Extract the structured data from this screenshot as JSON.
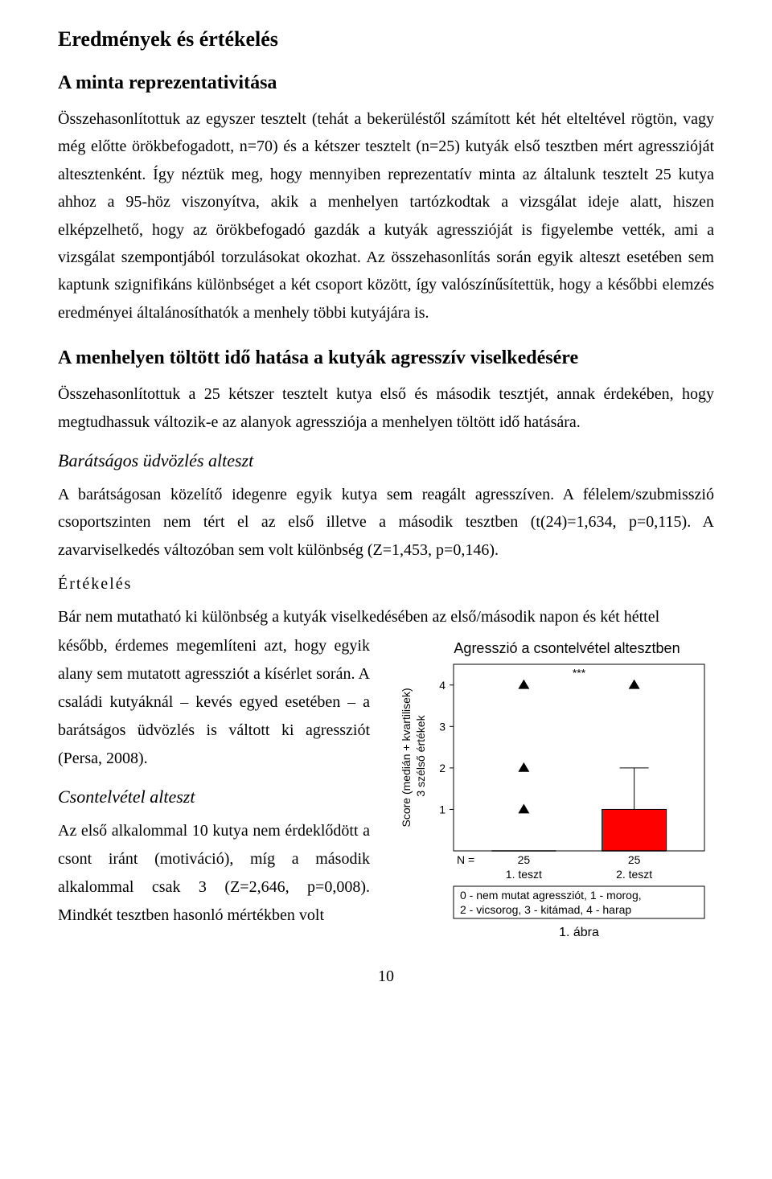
{
  "headings": {
    "h1": "Eredmények és értékelés",
    "h2": "A minta reprezentativitása",
    "h3": "A menhelyen töltött idő hatása a kutyák agresszív viselkedésére",
    "sub_italic_1": "Barátságos üdvözlés alteszt",
    "sub_spaced": "Értékelés",
    "sub_italic_2": "Csontelvétel alteszt"
  },
  "paragraphs": {
    "p1": "Összehasonlítottuk az egyszer tesztelt (tehát a bekerüléstől számított két hét elteltével rögtön, vagy még előtte örökbefogadott, n=70) és a kétszer tesztelt (n=25) kutyák első tesztben mért agresszióját altesztenként. Így néztük meg, hogy mennyiben reprezentatív minta az általunk tesztelt 25 kutya ahhoz a 95-höz viszonyítva, akik a menhelyen tartózkodtak a vizsgálat ideje alatt, hiszen elképzelhető, hogy az örökbefogadó gazdák a kutyák agresszióját is figyelembe vették, ami a vizsgálat szempontjából torzulásokat okozhat. Az összehasonlítás során egyik alteszt esetében sem kaptunk szignifikáns különbséget a két csoport között, így valószínűsítettük, hogy a későbbi elemzés eredményei általánosíthatók a menhely többi kutyájára is.",
    "p2": "Összehasonlítottuk a 25 kétszer tesztelt kutya első és második tesztjét, annak érdekében, hogy megtudhassuk változik-e az alanyok agressziója a menhelyen töltött idő hatására.",
    "p3": "A barátságosan közelítő idegenre egyik kutya sem reagált agresszíven. A félelem/szubmisszió csoportszinten nem tért el az első illetve a második tesztben (t(24)=1,634, p=0,115). A zavarviselkedés változóban sem volt különbség (Z=1,453, p=0,146).",
    "p4": "Bár nem mutatható ki különbség a kutyák viselkedésében az első/második napon és két héttel",
    "left1": "később, érdemes megemlíteni azt, hogy egyik alany sem mutatott agressziót a kísérlet során. A családi kutyáknál – kevés egyed esetében – a barátságos üdvözlés is váltott ki agressziót (Persa, 2008).",
    "left2": "Az első alkalommal 10 kutya nem érdeklődött a csont iránt (motiváció), míg a második alkalommal csak 3 (Z=2,646, p=0,008). Mindkét tesztben hasonló mértékben volt"
  },
  "chart": {
    "title": "Agresszió a csontelvétel altesztben",
    "type": "boxplot",
    "y_axis_label_line1": "Score (medián + kvartilisek)",
    "y_axis_label_line2": "3 szélső értékek",
    "categories": [
      "1. teszt",
      "2. teszt"
    ],
    "n_label": "N =",
    "n_values": [
      "25",
      "25"
    ],
    "ylim": [
      0,
      4.5
    ],
    "yticks": [
      1,
      2,
      3,
      4
    ],
    "sig_marker": "***",
    "outliers_cat1": [
      1,
      2,
      4
    ],
    "box2": {
      "q1": 0,
      "median": 0,
      "q3": 1,
      "whisker_hi": 2
    },
    "outliers_cat2": [
      4
    ],
    "box_fill": "#ff0000",
    "box_stroke": "#000000",
    "marker_shape": "triangle",
    "marker_color": "#000000",
    "bg": "#ffffff",
    "grid": false,
    "legend_box_text1": "0 - nem mutat agressziót, 1 - morog,",
    "legend_box_text2": "2 - vicsorog, 3 - kitámad, 4 - harap",
    "fig_label": "1. ábra"
  },
  "page_number": "10"
}
